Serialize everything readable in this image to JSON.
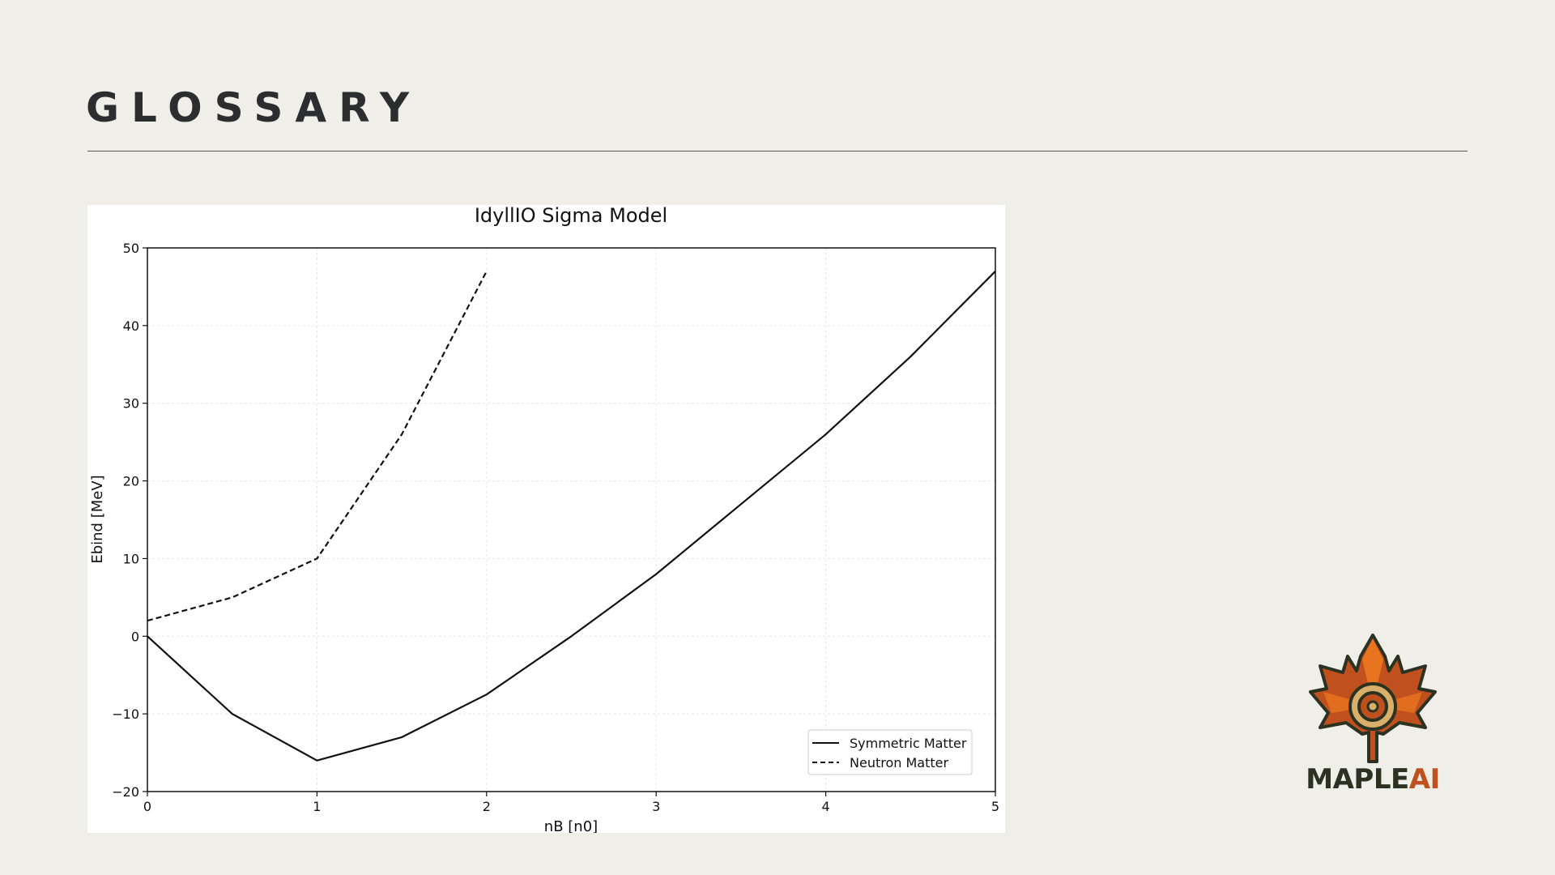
{
  "slide": {
    "title": "GLOSSARY"
  },
  "logo": {
    "text_part1": "MAPLE",
    "text_part2": "AI",
    "icon": "maple-leaf-icon",
    "colors": {
      "dark": "#2c3222",
      "accent": "#c0501e",
      "orange": "#e8741f",
      "ring": "#d9b06a"
    }
  },
  "chart_data": {
    "type": "line",
    "title": "IdyllIO Sigma Model",
    "xlabel": "nB [n0]",
    "ylabel": "Ebind [MeV]",
    "xlim": [
      0,
      5
    ],
    "ylim": [
      -20,
      50
    ],
    "xticks": [
      0,
      1,
      2,
      3,
      4,
      5
    ],
    "yticks": [
      -20,
      -10,
      0,
      10,
      20,
      30,
      40,
      50
    ],
    "ytick_labels": [
      "−20",
      "−10",
      "0",
      "10",
      "20",
      "30",
      "40",
      "50"
    ],
    "grid": true,
    "legend_position": "lower-right",
    "series": [
      {
        "name": "Symmetric Matter",
        "style": "solid",
        "color": "#111111",
        "x": [
          0,
          0.5,
          1,
          1.5,
          2,
          2.5,
          3,
          3.5,
          4,
          4.5,
          5
        ],
        "y": [
          0,
          -10,
          -16,
          -13,
          -7.5,
          0,
          8,
          17,
          26,
          36,
          47
        ]
      },
      {
        "name": "Neutron Matter",
        "style": "dashed",
        "color": "#111111",
        "x": [
          0,
          0.5,
          1,
          1.5,
          2
        ],
        "y": [
          2,
          5,
          10,
          26,
          47
        ]
      }
    ]
  }
}
